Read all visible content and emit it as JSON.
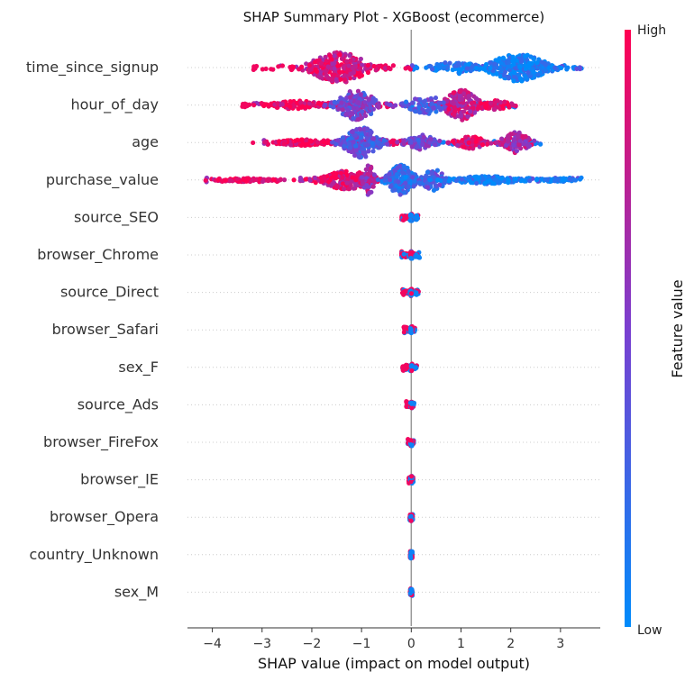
{
  "chart_data": {
    "type": "scatter",
    "subtype": "shap-beeswarm",
    "title": "SHAP Summary Plot - XGBoost (ecommerce)",
    "xlabel": "SHAP value (impact on model output)",
    "xlim": [
      -4.5,
      3.8
    ],
    "xticks": [
      -4,
      -3,
      -2,
      -1,
      0,
      1,
      2,
      3
    ],
    "xtick_labels": [
      "−4",
      "−3",
      "−2",
      "−1",
      "0",
      "1",
      "2",
      "3"
    ],
    "colorbar": {
      "label": "Feature value",
      "high": "High",
      "low": "Low",
      "colors": {
        "high": "#ff0052",
        "low": "#008bfb"
      }
    },
    "features": [
      {
        "name": "time_since_signup",
        "min": -3.2,
        "max": 3.45,
        "clusters": [
          {
            "center": -1.45,
            "spread": 0.75,
            "count": 260,
            "height": 1.0,
            "color": 0.85
          },
          {
            "center": 2.15,
            "spread": 0.75,
            "count": 260,
            "height": 0.9,
            "color": 0.05
          },
          {
            "center": 0.9,
            "spread": 0.6,
            "count": 60,
            "height": 0.4,
            "color": 0.1
          }
        ]
      },
      {
        "name": "hour_of_day",
        "min": -3.4,
        "max": 2.1,
        "clusters": [
          {
            "center": -2.3,
            "spread": 0.7,
            "count": 80,
            "height": 0.3,
            "color": 0.95
          },
          {
            "center": -1.1,
            "spread": 0.5,
            "count": 180,
            "height": 1.0,
            "color": 0.45
          },
          {
            "center": 1.0,
            "spread": 0.45,
            "count": 180,
            "height": 1.0,
            "color": 0.8
          },
          {
            "center": 0.3,
            "spread": 0.5,
            "count": 60,
            "height": 0.6,
            "color": 0.35
          },
          {
            "center": 1.7,
            "spread": 0.4,
            "count": 40,
            "height": 0.3,
            "color": 0.9
          }
        ]
      },
      {
        "name": "age",
        "min": -3.2,
        "max": 2.6,
        "clusters": [
          {
            "center": -2.2,
            "spread": 0.6,
            "count": 100,
            "height": 0.2,
            "color": 0.95
          },
          {
            "center": -1.0,
            "spread": 0.45,
            "count": 200,
            "height": 1.0,
            "color": 0.35
          },
          {
            "center": 0.2,
            "spread": 0.4,
            "count": 80,
            "height": 0.5,
            "color": 0.45
          },
          {
            "center": 1.2,
            "spread": 0.4,
            "count": 80,
            "height": 0.4,
            "color": 0.85
          },
          {
            "center": 2.1,
            "spread": 0.35,
            "count": 80,
            "height": 0.7,
            "color": 0.7
          }
        ]
      },
      {
        "name": "purchase_value",
        "min": -4.2,
        "max": 3.55,
        "clusters": [
          {
            "center": -3.3,
            "spread": 0.6,
            "count": 90,
            "height": 0.12,
            "color": 0.97
          },
          {
            "center": -1.3,
            "spread": 0.7,
            "count": 160,
            "height": 0.6,
            "color": 0.85
          },
          {
            "center": -0.85,
            "spread": 0.15,
            "count": 50,
            "height": 1.0,
            "color": 0.65
          },
          {
            "center": -0.2,
            "spread": 0.35,
            "count": 170,
            "height": 1.0,
            "color": 0.2
          },
          {
            "center": 0.45,
            "spread": 0.35,
            "count": 80,
            "height": 0.7,
            "color": 0.3
          },
          {
            "center": 1.5,
            "spread": 0.9,
            "count": 150,
            "height": 0.25,
            "color": 0.08
          },
          {
            "center": 3.0,
            "spread": 0.4,
            "count": 60,
            "height": 0.1,
            "color": 0.02
          }
        ]
      },
      {
        "name": "source_SEO",
        "min": -0.2,
        "max": 0.15,
        "narrow": true
      },
      {
        "name": "browser_Chrome",
        "min": -0.2,
        "max": 0.17,
        "narrow": true
      },
      {
        "name": "source_Direct",
        "min": -0.18,
        "max": 0.15,
        "narrow": true
      },
      {
        "name": "browser_Safari",
        "min": -0.15,
        "max": 0.08,
        "narrow": true
      },
      {
        "name": "sex_F",
        "min": -0.18,
        "max": 0.12,
        "narrow": true
      },
      {
        "name": "source_Ads",
        "min": -0.1,
        "max": 0.06,
        "narrow": true
      },
      {
        "name": "browser_FireFox",
        "min": -0.07,
        "max": 0.05,
        "narrow": true
      },
      {
        "name": "browser_IE",
        "min": -0.05,
        "max": 0.04,
        "narrow": true
      },
      {
        "name": "browser_Opera",
        "min": -0.03,
        "max": 0.03,
        "narrow": true
      },
      {
        "name": "country_Unknown",
        "min": -0.02,
        "max": 0.02,
        "narrow": true
      },
      {
        "name": "sex_M",
        "min": -0.02,
        "max": 0.02,
        "narrow": true
      }
    ]
  }
}
